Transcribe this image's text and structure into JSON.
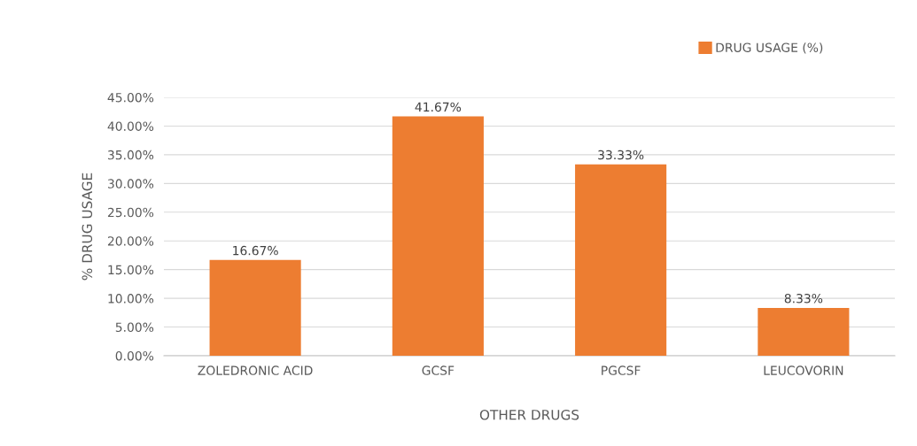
{
  "chart_data": {
    "type": "bar",
    "xlabel": "OTHER DRUGS",
    "ylabel": "% DRUG USAGE",
    "categories": [
      "ZOLEDRONIC ACID",
      "GCSF",
      "PGCSF",
      "LEUCOVORIN"
    ],
    "series": [
      {
        "name": "DRUG USAGE (%)",
        "color": "#ed7d31",
        "values": [
          16.67,
          41.67,
          33.33,
          8.33
        ],
        "value_labels": [
          "16.67%",
          "41.67%",
          "33.33%",
          "8.33%"
        ]
      }
    ],
    "ylim": [
      0,
      45
    ],
    "yticks": [
      {
        "value": 0,
        "label": "0.00%"
      },
      {
        "value": 5,
        "label": "5.00%"
      },
      {
        "value": 10,
        "label": "10.00%"
      },
      {
        "value": 15,
        "label": "15.00%"
      },
      {
        "value": 20,
        "label": "20.00%"
      },
      {
        "value": 25,
        "label": "25.00%"
      },
      {
        "value": 30,
        "label": "30.00%"
      },
      {
        "value": 35,
        "label": "35.00%"
      },
      {
        "value": 40,
        "label": "40.00%"
      },
      {
        "value": 45,
        "label": "45.00%"
      }
    ],
    "grid": "y",
    "legend": "top right"
  }
}
